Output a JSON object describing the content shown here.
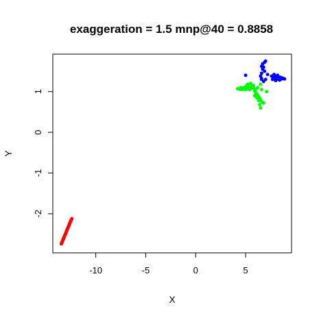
{
  "chart_data": {
    "type": "scatter",
    "title": "exaggeration = 1.5 mnp@40 = 0.8858",
    "xlabel": "X",
    "ylabel": "Y",
    "xlim": [
      -14.3,
      9.6
    ],
    "ylim": [
      -2.96,
      1.92
    ],
    "xticks": [
      -10,
      -5,
      0,
      5
    ],
    "yticks": [
      -2,
      -1,
      0,
      1
    ],
    "xtick_labels": [
      "-10",
      "-5",
      "0",
      "5"
    ],
    "ytick_labels": [
      "-2",
      "-1",
      "0",
      "1"
    ],
    "grid": false,
    "series": [
      {
        "color": "#ff0000",
        "points": [
          [
            -12.4,
            -2.12
          ],
          [
            -12.5,
            -2.17
          ],
          [
            -12.55,
            -2.2
          ],
          [
            -12.6,
            -2.23
          ],
          [
            -12.65,
            -2.26
          ],
          [
            -12.7,
            -2.29
          ],
          [
            -12.75,
            -2.32
          ],
          [
            -12.8,
            -2.35
          ],
          [
            -12.85,
            -2.38
          ],
          [
            -12.9,
            -2.41
          ],
          [
            -12.95,
            -2.44
          ],
          [
            -13.0,
            -2.47
          ],
          [
            -13.05,
            -2.5
          ],
          [
            -13.1,
            -2.53
          ],
          [
            -13.15,
            -2.56
          ],
          [
            -13.2,
            -2.59
          ],
          [
            -13.25,
            -2.62
          ],
          [
            -13.3,
            -2.65
          ],
          [
            -13.35,
            -2.68
          ],
          [
            -13.4,
            -2.71
          ],
          [
            -13.45,
            -2.74
          ],
          [
            -12.45,
            -2.15
          ],
          [
            -12.62,
            -2.25
          ],
          [
            -12.78,
            -2.34
          ],
          [
            -12.92,
            -2.43
          ],
          [
            -13.08,
            -2.52
          ],
          [
            -13.22,
            -2.6
          ],
          [
            -13.38,
            -2.7
          ],
          [
            -12.58,
            -2.21
          ],
          [
            -12.88,
            -2.4
          ],
          [
            -13.18,
            -2.58
          ],
          [
            -13.42,
            -2.73
          ],
          [
            -12.7,
            -2.3
          ],
          [
            -13.0,
            -2.48
          ],
          [
            -13.28,
            -2.64
          ]
        ]
      },
      {
        "color": "#00ff00",
        "points": [
          [
            4.2,
            1.07
          ],
          [
            4.4,
            1.06
          ],
          [
            4.5,
            1.08
          ],
          [
            4.6,
            1.05
          ],
          [
            4.7,
            1.09
          ],
          [
            4.8,
            1.06
          ],
          [
            4.9,
            1.1
          ],
          [
            5.0,
            1.12
          ],
          [
            5.1,
            1.15
          ],
          [
            5.2,
            1.18
          ],
          [
            5.0,
            1.05
          ],
          [
            5.2,
            1.07
          ],
          [
            5.3,
            1.1
          ],
          [
            5.4,
            1.05
          ],
          [
            5.5,
            1.08
          ],
          [
            5.6,
            1.12
          ],
          [
            5.7,
            1.14
          ],
          [
            5.8,
            1.15
          ],
          [
            5.9,
            1.02
          ],
          [
            6.0,
            0.98
          ],
          [
            6.1,
            0.95
          ],
          [
            6.2,
            0.92
          ],
          [
            6.3,
            0.88
          ],
          [
            6.4,
            0.84
          ],
          [
            6.5,
            0.8
          ],
          [
            6.6,
            0.75
          ],
          [
            6.4,
            0.68
          ],
          [
            6.5,
            0.6
          ],
          [
            6.3,
            0.78
          ],
          [
            6.1,
            0.85
          ],
          [
            6.0,
            1.05
          ],
          [
            6.2,
            1.1
          ],
          [
            6.5,
            1.18
          ],
          [
            6.6,
            1.05
          ],
          [
            7.1,
            1.0
          ],
          [
            5.9,
            0.9
          ],
          [
            6.8,
            0.72
          ],
          [
            5.5,
            1.2
          ],
          [
            4.5,
            1.1
          ],
          [
            5.8,
            1.08
          ]
        ]
      },
      {
        "color": "#0000ff",
        "points": [
          [
            6.5,
            1.38
          ],
          [
            6.6,
            1.45
          ],
          [
            6.7,
            1.55
          ],
          [
            6.8,
            1.6
          ],
          [
            6.7,
            1.68
          ],
          [
            6.9,
            1.72
          ],
          [
            7.0,
            1.75
          ],
          [
            6.6,
            1.62
          ],
          [
            6.9,
            1.5
          ],
          [
            7.0,
            1.3
          ],
          [
            6.8,
            1.25
          ],
          [
            6.6,
            1.3
          ],
          [
            7.2,
            1.42
          ],
          [
            7.7,
            1.3
          ],
          [
            7.8,
            1.35
          ],
          [
            7.9,
            1.32
          ],
          [
            8.0,
            1.38
          ],
          [
            8.1,
            1.3
          ],
          [
            8.2,
            1.34
          ],
          [
            8.3,
            1.36
          ],
          [
            8.4,
            1.33
          ],
          [
            8.5,
            1.35
          ],
          [
            8.6,
            1.31
          ],
          [
            8.7,
            1.33
          ],
          [
            8.8,
            1.32
          ],
          [
            8.9,
            1.31
          ],
          [
            7.6,
            1.38
          ],
          [
            8.0,
            1.27
          ],
          [
            8.2,
            1.4
          ],
          [
            8.4,
            1.28
          ],
          [
            5.0,
            1.4
          ],
          [
            6.6,
            1.32
          ],
          [
            7.85,
            1.42
          ]
        ]
      }
    ]
  }
}
